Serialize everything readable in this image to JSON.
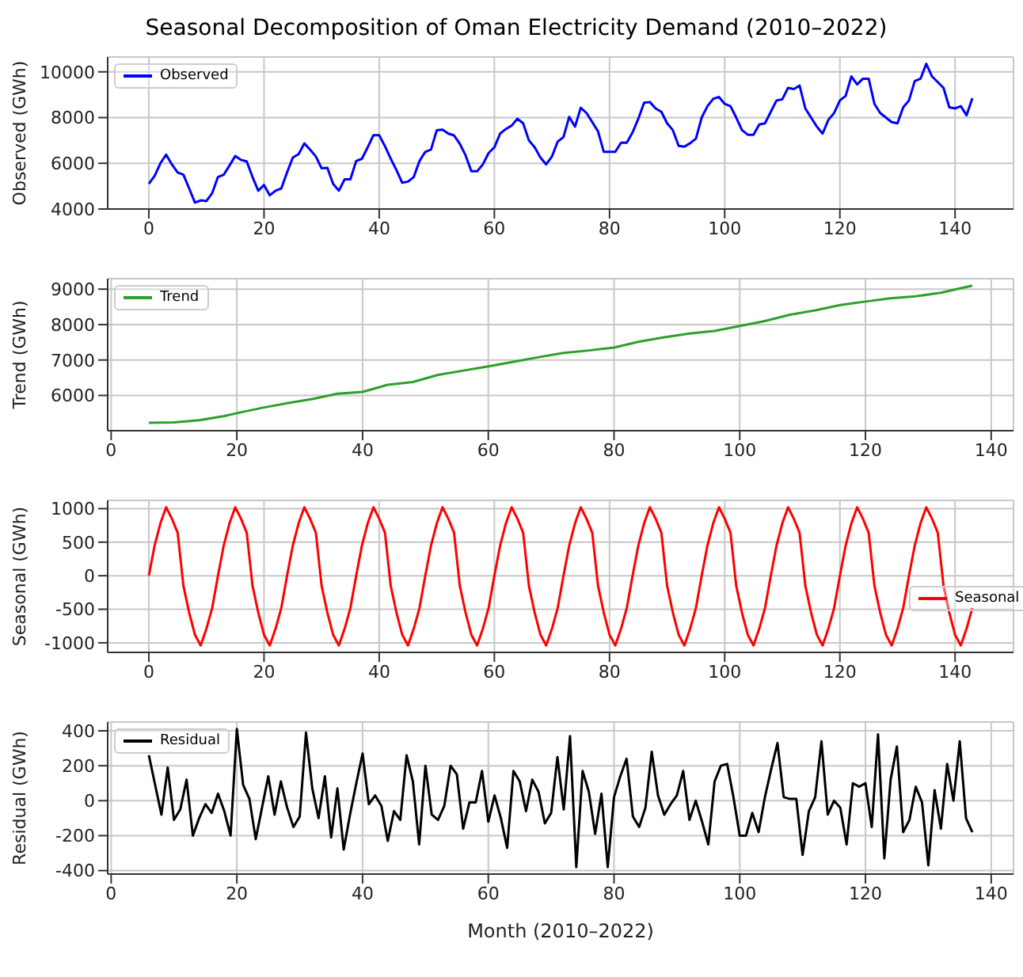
{
  "chart_data": [
    {
      "type": "line",
      "title": "Seasonal Decomposition of Oman Electricity Demand (2010–2022)",
      "ylabel": "Observed (GWh)",
      "xlim": [
        -7.15,
        150.15
      ],
      "xticks": [
        0,
        20,
        40,
        60,
        80,
        100,
        120,
        140
      ],
      "ylim": [
        4000,
        10650
      ],
      "yticks": [
        4000,
        6000,
        8000,
        10000
      ],
      "grid": true,
      "legend": "top left",
      "x": [
        0,
        1,
        2,
        3,
        4,
        5,
        6,
        7,
        8,
        9,
        10,
        11,
        12,
        13,
        14,
        15,
        16,
        17,
        18,
        19,
        20,
        21,
        22,
        23,
        24,
        25,
        26,
        27,
        28,
        29,
        30,
        31,
        32,
        33,
        34,
        35,
        36,
        37,
        38,
        39,
        40,
        41,
        42,
        43,
        44,
        45,
        46,
        47,
        48,
        49,
        50,
        51,
        52,
        53,
        54,
        55,
        56,
        57,
        58,
        59,
        60,
        61,
        62,
        63,
        64,
        65,
        66,
        67,
        68,
        69,
        70,
        71,
        72,
        73,
        74,
        75,
        76,
        77,
        78,
        79,
        80,
        81,
        82,
        83,
        84,
        85,
        86,
        87,
        88,
        89,
        90,
        91,
        92,
        93,
        94,
        95,
        96,
        97,
        98,
        99,
        100,
        101,
        102,
        103,
        104,
        105,
        106,
        107,
        108,
        109,
        110,
        111,
        112,
        113,
        114,
        115,
        116,
        117,
        118,
        119,
        120,
        121,
        122,
        123,
        124,
        125,
        126,
        127,
        128,
        129,
        130,
        131,
        132,
        133,
        134,
        135,
        136,
        137,
        138,
        139,
        140,
        141,
        142,
        143
      ],
      "series": [
        {
          "name": "Observed",
          "color": "#0000ff",
          "values": [
            5100,
            5450,
            6000,
            6380,
            5950,
            5600,
            5500,
            4900,
            4280,
            4380,
            4350,
            4700,
            5400,
            5500,
            5900,
            6320,
            6150,
            6080,
            5400,
            4800,
            5050,
            4600,
            4800,
            4900,
            5600,
            6250,
            6400,
            6870,
            6600,
            6300,
            5780,
            5800,
            5100,
            4800,
            5300,
            5300,
            6100,
            6200,
            6700,
            7230,
            7230,
            6750,
            6200,
            5700,
            5150,
            5200,
            5400,
            6100,
            6500,
            6600,
            7450,
            7470,
            7300,
            7220,
            6850,
            6350,
            5650,
            5650,
            5950,
            6450,
            6700,
            7300,
            7500,
            7650,
            7950,
            7750,
            7000,
            6700,
            6250,
            5950,
            6300,
            6950,
            7150,
            8030,
            7600,
            8430,
            8200,
            7800,
            7400,
            6500,
            6500,
            6500,
            6900,
            6900,
            7350,
            7950,
            8650,
            8680,
            8400,
            8250,
            7750,
            7450,
            6760,
            6730,
            6880,
            7080,
            8000,
            8500,
            8820,
            8900,
            8600,
            8500,
            8000,
            7450,
            7250,
            7250,
            7700,
            7750,
            8250,
            8750,
            8800,
            9300,
            9250,
            9400,
            8400,
            8000,
            7600,
            7300,
            7900,
            8200,
            8750,
            8950,
            9800,
            9450,
            9700,
            9700,
            8600,
            8200,
            8000,
            7800,
            7750,
            8450,
            8750,
            9600,
            9700,
            10350,
            9800,
            9550,
            9300,
            8450,
            8400,
            8500,
            8100,
            8850
          ]
        }
      ]
    },
    {
      "type": "line",
      "ylabel": "Trend (GWh)",
      "xlim": [
        -0.55,
        143.55
      ],
      "xticks": [
        0,
        20,
        40,
        60,
        80,
        100,
        120,
        140
      ],
      "ylim": [
        5005,
        9295
      ],
      "yticks": [
        6000,
        7000,
        8000,
        9000
      ],
      "grid": true,
      "legend": "top left",
      "series": [
        {
          "name": "Trend",
          "color": "#2ca02c",
          "x": [
            6,
            10,
            14,
            18,
            20,
            24,
            28,
            32,
            36,
            40,
            44,
            48,
            52,
            56,
            60,
            64,
            68,
            72,
            76,
            80,
            84,
            88,
            92,
            96,
            100,
            104,
            108,
            112,
            116,
            120,
            124,
            128,
            132,
            137
          ],
          "values": [
            5230,
            5240,
            5300,
            5420,
            5500,
            5650,
            5780,
            5900,
            6050,
            6100,
            6300,
            6380,
            6580,
            6700,
            6820,
            6950,
            7080,
            7200,
            7270,
            7350,
            7520,
            7640,
            7750,
            7820,
            7960,
            8100,
            8280,
            8400,
            8550,
            8650,
            8740,
            8800,
            8900,
            9100
          ]
        }
      ]
    },
    {
      "type": "line",
      "ylabel": "Seasonal (GWh)",
      "xlim": [
        -7.15,
        150.15
      ],
      "xticks": [
        0,
        20,
        40,
        60,
        80,
        100,
        120,
        140
      ],
      "ylim": [
        -1143,
        1123
      ],
      "yticks": [
        -1000,
        -500,
        0,
        500,
        1000
      ],
      "grid": true,
      "legend": "right",
      "x": [
        0,
        1,
        2,
        3,
        4,
        5,
        6,
        7,
        8,
        9,
        10,
        11,
        12,
        13,
        14,
        15,
        16,
        17,
        18,
        19,
        20,
        21,
        22,
        23,
        24,
        25,
        26,
        27,
        28,
        29,
        30,
        31,
        32,
        33,
        34,
        35,
        36,
        37,
        38,
        39,
        40,
        41,
        42,
        43,
        44,
        45,
        46,
        47,
        48,
        49,
        50,
        51,
        52,
        53,
        54,
        55,
        56,
        57,
        58,
        59,
        60,
        61,
        62,
        63,
        64,
        65,
        66,
        67,
        68,
        69,
        70,
        71,
        72,
        73,
        74,
        75,
        76,
        77,
        78,
        79,
        80,
        81,
        82,
        83,
        84,
        85,
        86,
        87,
        88,
        89,
        90,
        91,
        92,
        93,
        94,
        95,
        96,
        97,
        98,
        99,
        100,
        101,
        102,
        103,
        104,
        105,
        106,
        107,
        108,
        109,
        110,
        111,
        112,
        113,
        114,
        115,
        116,
        117,
        118,
        119,
        120,
        121,
        122,
        123,
        124,
        125,
        126,
        127,
        128,
        129,
        130,
        131,
        132,
        133,
        134,
        135,
        136,
        137,
        138,
        139,
        140,
        141,
        142,
        143
      ],
      "series": [
        {
          "name": "Seasonal",
          "color": "#ff0000",
          "values": [
            0,
            450,
            780,
            1020,
            850,
            640,
            -150,
            -550,
            -880,
            -1040,
            -790,
            -480,
            0,
            450,
            780,
            1020,
            850,
            640,
            -150,
            -550,
            -880,
            -1040,
            -790,
            -480,
            0,
            450,
            780,
            1020,
            850,
            640,
            -150,
            -550,
            -880,
            -1040,
            -790,
            -480,
            0,
            450,
            780,
            1020,
            850,
            640,
            -150,
            -550,
            -880,
            -1040,
            -790,
            -480,
            0,
            450,
            780,
            1020,
            850,
            640,
            -150,
            -550,
            -880,
            -1040,
            -790,
            -480,
            0,
            450,
            780,
            1020,
            850,
            640,
            -150,
            -550,
            -880,
            -1040,
            -790,
            -480,
            0,
            450,
            780,
            1020,
            850,
            640,
            -150,
            -550,
            -880,
            -1040,
            -790,
            -480,
            0,
            450,
            780,
            1020,
            850,
            640,
            -150,
            -550,
            -880,
            -1040,
            -790,
            -480,
            0,
            450,
            780,
            1020,
            850,
            640,
            -150,
            -550,
            -880,
            -1040,
            -790,
            -480,
            0,
            450,
            780,
            1020,
            850,
            640,
            -150,
            -550,
            -880,
            -1040,
            -790,
            -480,
            0,
            450,
            780,
            1020,
            850,
            640,
            -150,
            -550,
            -880,
            -1040,
            -790,
            -480,
            0,
            450,
            780,
            1020,
            850,
            640,
            -150,
            -550,
            -880,
            -1040,
            -790,
            -480
          ]
        }
      ]
    },
    {
      "type": "line",
      "ylabel": "Residual (GWh)",
      "xlabel": "Month (2010–2022)",
      "xlim": [
        -0.55,
        143.55
      ],
      "xticks": [
        0,
        20,
        40,
        60,
        80,
        100,
        120,
        140
      ],
      "ylim": [
        -420,
        450
      ],
      "yticks": [
        -400,
        -200,
        0,
        200,
        400
      ],
      "grid": true,
      "legend": "top left",
      "series": [
        {
          "name": "Residual",
          "color": "#000000",
          "x": [
            6,
            7,
            8,
            9,
            10,
            11,
            12,
            13,
            14,
            15,
            16,
            17,
            18,
            19,
            20,
            21,
            22,
            23,
            24,
            25,
            26,
            27,
            28,
            29,
            30,
            31,
            32,
            33,
            34,
            35,
            36,
            37,
            38,
            39,
            40,
            41,
            42,
            43,
            44,
            45,
            46,
            47,
            48,
            49,
            50,
            51,
            52,
            53,
            54,
            55,
            56,
            57,
            58,
            59,
            60,
            61,
            62,
            63,
            64,
            65,
            66,
            67,
            68,
            69,
            70,
            71,
            72,
            73,
            74,
            75,
            76,
            77,
            78,
            79,
            80,
            81,
            82,
            83,
            84,
            85,
            86,
            87,
            88,
            89,
            90,
            91,
            92,
            93,
            94,
            95,
            96,
            97,
            98,
            99,
            100,
            101,
            102,
            103,
            104,
            105,
            106,
            107,
            108,
            109,
            110,
            111,
            112,
            113,
            114,
            115,
            116,
            117,
            118,
            119,
            120,
            121,
            122,
            123,
            124,
            125,
            126,
            127,
            128,
            129,
            130,
            131,
            132,
            133,
            134,
            135,
            136,
            137
          ],
          "values": [
            260,
            90,
            -80,
            190,
            -110,
            -50,
            120,
            -200,
            -100,
            -20,
            -70,
            40,
            -60,
            -200,
            410,
            90,
            10,
            -220,
            -40,
            140,
            -80,
            110,
            -40,
            -150,
            -90,
            390,
            70,
            -100,
            140,
            -210,
            70,
            -280,
            -80,
            100,
            270,
            -20,
            30,
            -30,
            -230,
            -60,
            -110,
            260,
            110,
            -250,
            200,
            -80,
            -110,
            -30,
            200,
            150,
            -160,
            -10,
            -10,
            170,
            -120,
            30,
            -100,
            -270,
            170,
            110,
            -60,
            120,
            50,
            -130,
            -70,
            250,
            -50,
            370,
            -380,
            170,
            50,
            -190,
            40,
            -380,
            20,
            140,
            240,
            -90,
            -150,
            -40,
            280,
            30,
            -80,
            -20,
            30,
            170,
            -110,
            0,
            -120,
            -250,
            110,
            200,
            210,
            20,
            -200,
            -200,
            -70,
            -180,
            20,
            180,
            330,
            20,
            10,
            10,
            -310,
            -60,
            20,
            340,
            -80,
            0,
            -40,
            -250,
            100,
            80,
            100,
            -150,
            380,
            -330,
            120,
            310,
            -180,
            -110,
            80,
            -10,
            -370,
            60,
            -160,
            210,
            0,
            340,
            -100,
            -180
          ]
        }
      ]
    }
  ]
}
